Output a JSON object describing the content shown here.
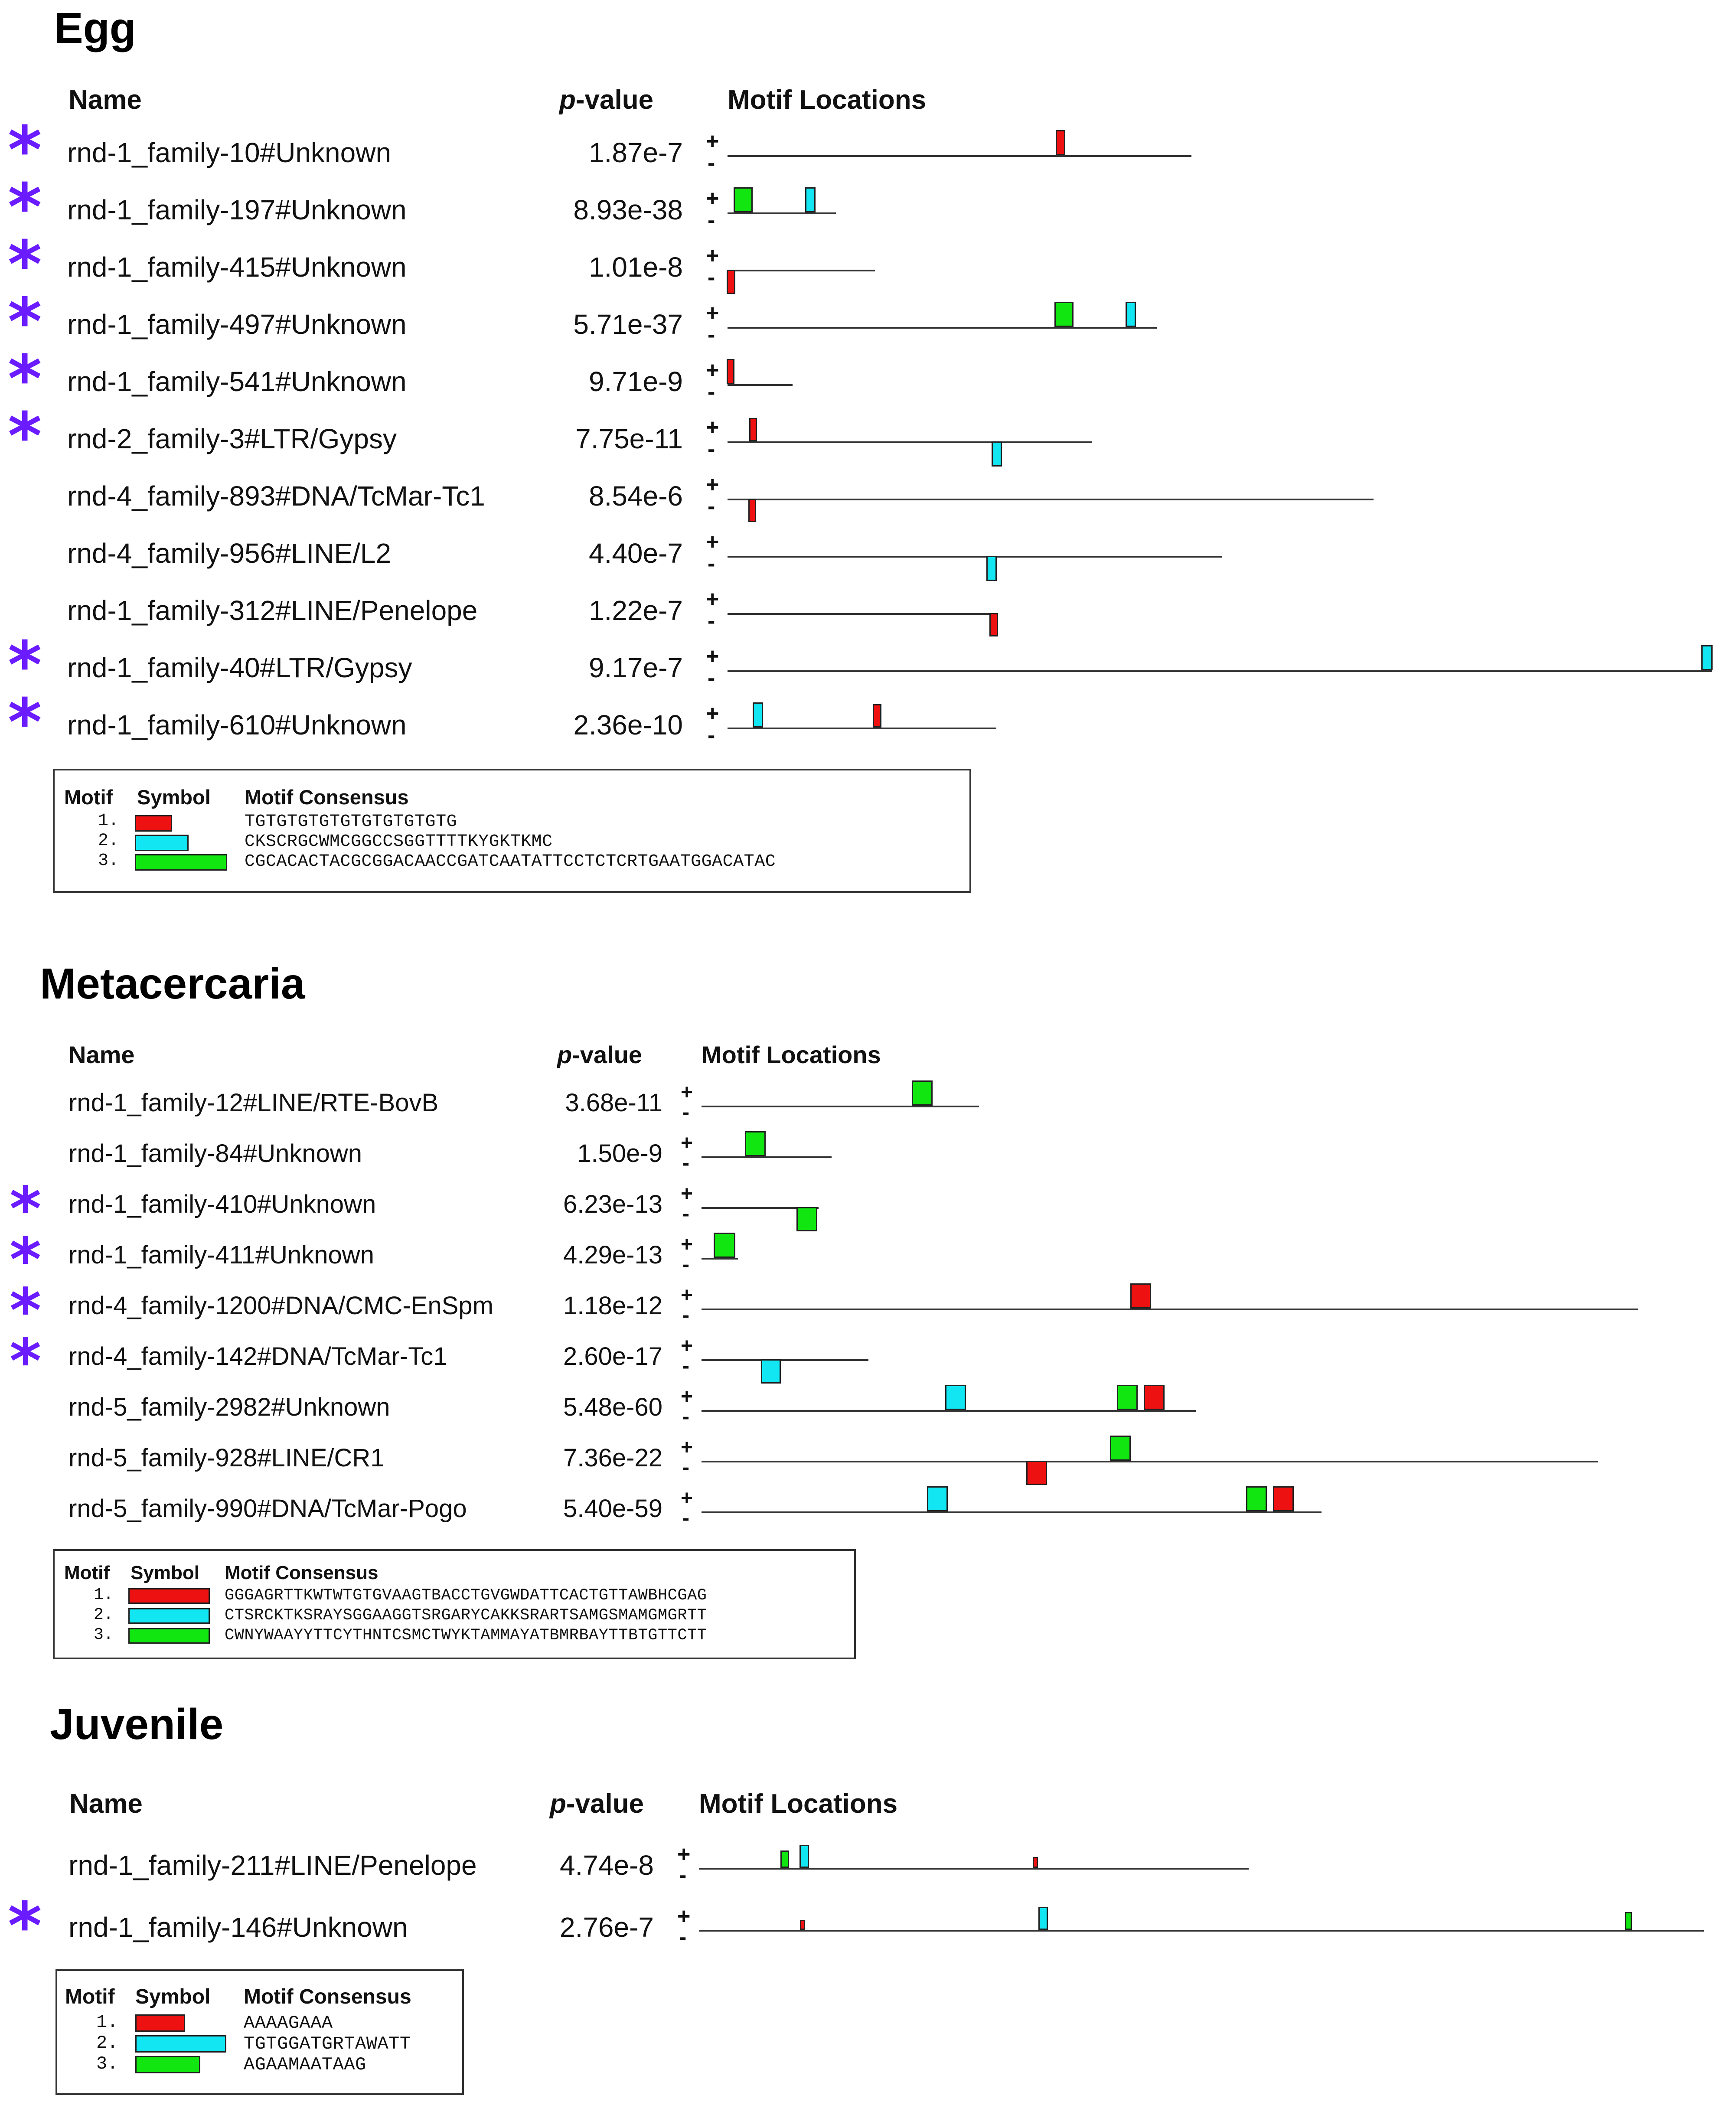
{
  "colors": {
    "motif1": "#ee1111",
    "motif2": "#11e6f2",
    "motif3": "#11e611",
    "star": "#6a1bff"
  },
  "strands": {
    "plus": "+",
    "minus": "-"
  },
  "sections": [
    {
      "title": "Egg",
      "headers": {
        "name": "Name",
        "p_italic": "p",
        "p_rest": "-value",
        "motifs": "Motif Locations"
      },
      "rows": [
        {
          "star": "*",
          "name": "rnd-1_family-10#Unknown",
          "pvalue": "1.87e-7"
        },
        {
          "star": "*",
          "name": "rnd-1_family-197#Unknown",
          "pvalue": "8.93e-38"
        },
        {
          "star": "*",
          "name": "rnd-1_family-415#Unknown",
          "pvalue": "1.01e-8"
        },
        {
          "star": "*",
          "name": "rnd-1_family-497#Unknown",
          "pvalue": "5.71e-37"
        },
        {
          "star": "*",
          "name": "rnd-1_family-541#Unknown",
          "pvalue": "9.71e-9"
        },
        {
          "star": "*",
          "name": "rnd-2_family-3#LTR/Gypsy",
          "pvalue": "7.75e-11"
        },
        {
          "star": "",
          "name": "rnd-4_family-893#DNA/TcMar-Tc1",
          "pvalue": "8.54e-6"
        },
        {
          "star": "",
          "name": "rnd-4_family-956#LINE/L2",
          "pvalue": "4.40e-7"
        },
        {
          "star": "",
          "name": "rnd-1_family-312#LINE/Penelope",
          "pvalue": "1.22e-7"
        },
        {
          "star": "*",
          "name": "rnd-1_family-40#LTR/Gypsy",
          "pvalue": "9.17e-7"
        },
        {
          "star": "*",
          "name": "rnd-1_family-610#Unknown",
          "pvalue": "2.36e-10"
        }
      ],
      "legend": {
        "headers": {
          "motif": "Motif",
          "symbol": "Symbol",
          "consensus": "Motif Consensus"
        },
        "motifs": [
          {
            "num": "1.",
            "consensus": "TGTGTGTGTGTGTGTGTGTG"
          },
          {
            "num": "2.",
            "consensus": "CKSCRGCWMCGGCCSGGTTTTKYGKTKMC"
          },
          {
            "num": "3.",
            "consensus": "CGCACACTACGCGGACAACCGATCAATATTCCTCTCRTGAATGGACATAC"
          }
        ]
      }
    },
    {
      "title": "Metacercaria",
      "headers": {
        "name": "Name",
        "p_italic": "p",
        "p_rest": "-value",
        "motifs": "Motif Locations"
      },
      "rows": [
        {
          "star": "",
          "name": "rnd-1_family-12#LINE/RTE-BovB",
          "pvalue": "3.68e-11"
        },
        {
          "star": "",
          "name": "rnd-1_family-84#Unknown",
          "pvalue": "1.50e-9"
        },
        {
          "star": "*",
          "name": "rnd-1_family-410#Unknown",
          "pvalue": "6.23e-13"
        },
        {
          "star": "*",
          "name": "rnd-1_family-411#Unknown",
          "pvalue": "4.29e-13"
        },
        {
          "star": "*",
          "name": "rnd-4_family-1200#DNA/CMC-EnSpm",
          "pvalue": "1.18e-12"
        },
        {
          "star": "*",
          "name": "rnd-4_family-142#DNA/TcMar-Tc1",
          "pvalue": "2.60e-17"
        },
        {
          "star": "",
          "name": "rnd-5_family-2982#Unknown",
          "pvalue": "5.48e-60"
        },
        {
          "star": "",
          "name": "rnd-5_family-928#LINE/CR1",
          "pvalue": "7.36e-22"
        },
        {
          "star": "",
          "name": "rnd-5_family-990#DNA/TcMar-Pogo",
          "pvalue": "5.40e-59"
        }
      ],
      "legend": {
        "headers": {
          "motif": "Motif",
          "symbol": "Symbol",
          "consensus": "Motif Consensus"
        },
        "motifs": [
          {
            "num": "1.",
            "consensus": "GGGAGRTTKWTWTGTGVAAGTBACCTGVGWDATTCACTGTTAWBHCGAG"
          },
          {
            "num": "2.",
            "consensus": "CTSRCKTKSRAYSGGAAGGTSRGARYCAKKSRARTSAMGSMAMGMGRTT"
          },
          {
            "num": "3.",
            "consensus": "CWNYWAAYYTTCYTHNTCSMCTWYKTAMMAYATBMRBAYTTBTGTTCTT"
          }
        ]
      }
    },
    {
      "title": "Juvenile",
      "headers": {
        "name": "Name",
        "p_italic": "p",
        "p_rest": "-value",
        "motifs": "Motif Locations"
      },
      "rows": [
        {
          "star": "",
          "name": "rnd-1_family-211#LINE/Penelope",
          "pvalue": "4.74e-8"
        },
        {
          "star": "*",
          "name": "rnd-1_family-146#Unknown",
          "pvalue": "2.76e-7"
        }
      ],
      "legend": {
        "headers": {
          "motif": "Motif",
          "symbol": "Symbol",
          "consensus": "Motif Consensus"
        },
        "motifs": [
          {
            "num": "1.",
            "consensus": "AAAAGAAA"
          },
          {
            "num": "2.",
            "consensus": "TGTGGATGRTAWATT"
          },
          {
            "num": "3.",
            "consensus": "AGAAMAATAAG"
          }
        ]
      }
    }
  ]
}
